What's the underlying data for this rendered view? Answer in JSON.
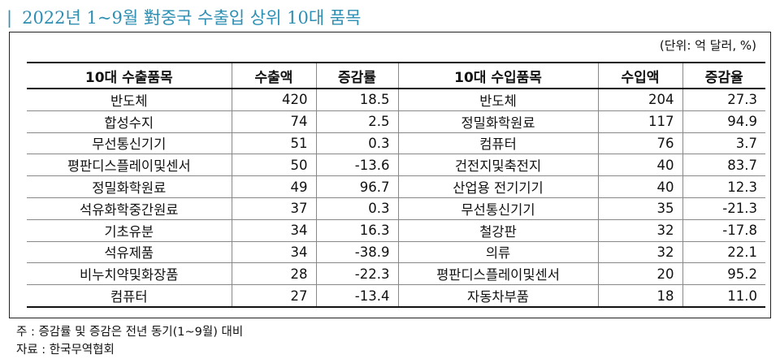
{
  "title": "2022년 1~9월 對중국 수출입 상위 10대 품목",
  "title_bar": "|",
  "unit": "(단위: 억 달러, %)",
  "headers": [
    "10대 수출품목",
    "수출액",
    "증감률",
    "10대 수입품목",
    "수입액",
    "증감율"
  ],
  "rows": [
    [
      "반도체",
      "420",
      "18.5",
      "반도체",
      "204",
      "27.3"
    ],
    [
      "합성수지",
      "74",
      "2.5",
      "정밀화학원료",
      "117",
      "94.9"
    ],
    [
      "무선통신기기",
      "51",
      "0.3",
      "컴퓨터",
      "76",
      "3.7"
    ],
    [
      "평판디스플레이및센서",
      "50",
      "-13.6",
      "건전지및축전지",
      "40",
      "83.7"
    ],
    [
      "정밀화학원료",
      "49",
      "96.7",
      "산업용 전기기기",
      "40",
      "12.3"
    ],
    [
      "석유화학중간원료",
      "37",
      "0.3",
      "무선통신기기",
      "35",
      "-21.3"
    ],
    [
      "기초유분",
      "34",
      "16.3",
      "철강판",
      "32",
      "-17.8"
    ],
    [
      "석유제품",
      "34",
      "-38.9",
      "의류",
      "32",
      "22.1"
    ],
    [
      "비누치약및화장품",
      "28",
      "-22.3",
      "평판디스플레이및센서",
      "20",
      "95.2"
    ],
    [
      "컴퓨터",
      "27",
      "-13.4",
      "자동차부품",
      "18",
      "11.0"
    ]
  ],
  "notes": {
    "note": "주 : 증감률 및 증감은 전년 동기(1~9월) 대비",
    "source": "자료 : 한국무역협회"
  }
}
